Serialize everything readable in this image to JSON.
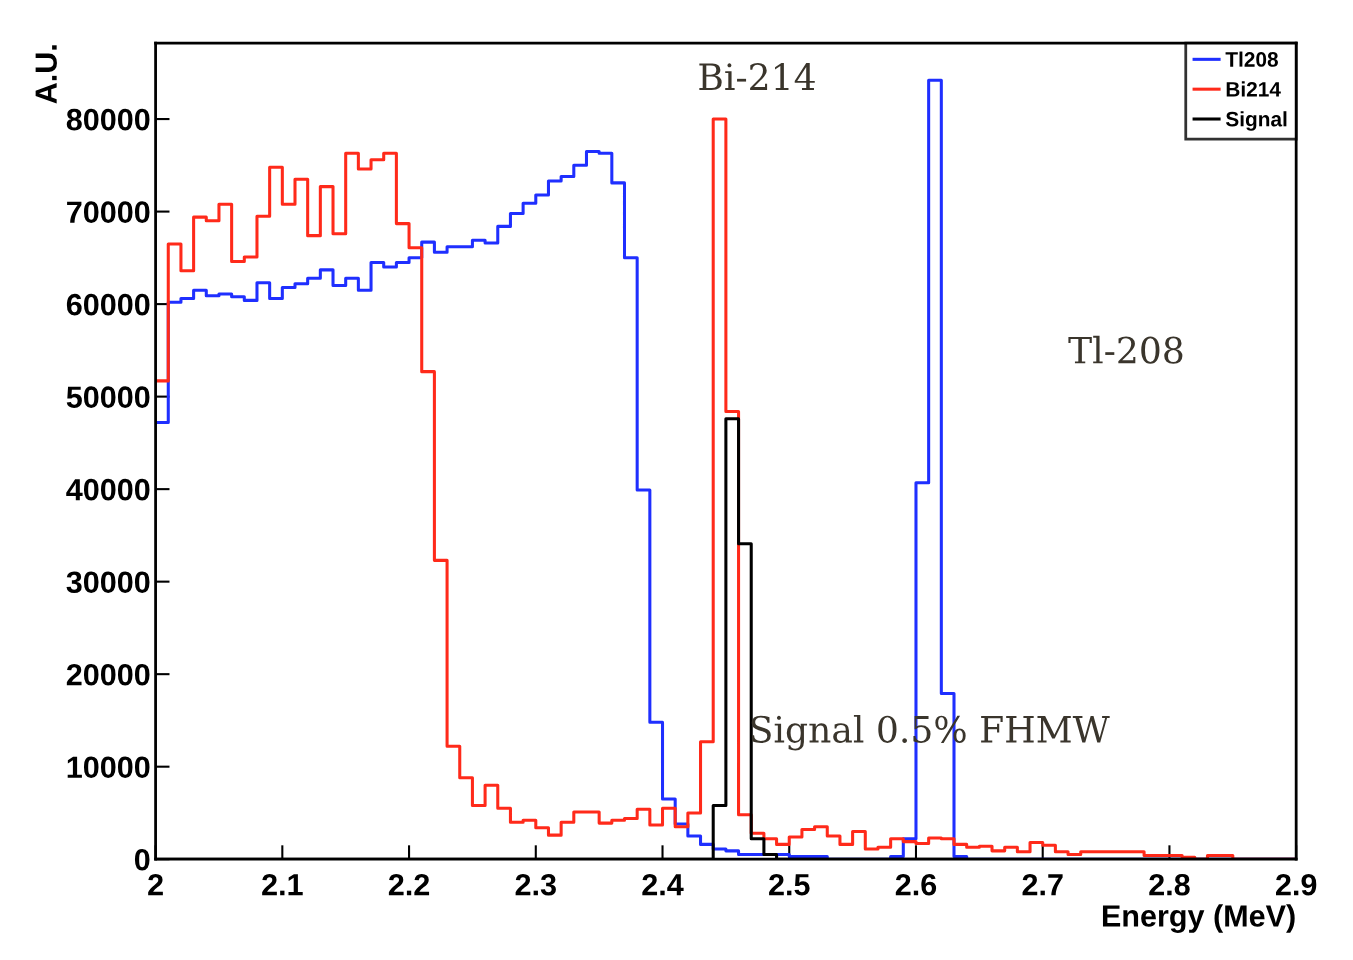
{
  "chart_data": {
    "type": "histogram",
    "xlabel": "Energy (MeV)",
    "ylabel": "A.U.",
    "bins": [
      2.0,
      2.01,
      2.02,
      2.03,
      2.04,
      2.05,
      2.06,
      2.07,
      2.08,
      2.09,
      2.1,
      2.11,
      2.12,
      2.13,
      2.14,
      2.15,
      2.16,
      2.17,
      2.18,
      2.19,
      2.2,
      2.21,
      2.22,
      2.23,
      2.24,
      2.25,
      2.26,
      2.27,
      2.28,
      2.29,
      2.3,
      2.31,
      2.32,
      2.33,
      2.34,
      2.35,
      2.36,
      2.37,
      2.38,
      2.39,
      2.4,
      2.41,
      2.42,
      2.43,
      2.44,
      2.45,
      2.46,
      2.47,
      2.48,
      2.49,
      2.5,
      2.51,
      2.52,
      2.53,
      2.54,
      2.55,
      2.56,
      2.57,
      2.58,
      2.59,
      2.6,
      2.61,
      2.62,
      2.63,
      2.64,
      2.65,
      2.66,
      2.67,
      2.68,
      2.69,
      2.7,
      2.71,
      2.72,
      2.73,
      2.74,
      2.75,
      2.76,
      2.77,
      2.78,
      2.79,
      2.8,
      2.81,
      2.82,
      2.83,
      2.84,
      2.85,
      2.86,
      2.87,
      2.88,
      2.89,
      2.9
    ],
    "series": [
      {
        "name": "Tl208",
        "color": "#1f2fff",
        "values": [
          47200,
          60200,
          60600,
          61500,
          60900,
          61100,
          60800,
          60400,
          62300,
          60600,
          61800,
          62200,
          62800,
          63700,
          62000,
          62800,
          61500,
          64500,
          64000,
          64500,
          65000,
          66700,
          65600,
          66200,
          66200,
          66900,
          66600,
          68400,
          69800,
          70900,
          71800,
          73300,
          73800,
          75000,
          76500,
          76300,
          73100,
          65000,
          39900,
          14800,
          6500,
          3800,
          2500,
          1600,
          1100,
          900,
          500,
          500,
          500,
          500,
          300,
          300,
          300,
          0,
          0,
          0,
          0,
          0,
          300,
          2200,
          40700,
          84200,
          17900,
          300,
          0,
          0,
          0,
          0,
          0,
          0,
          0,
          0,
          0,
          0,
          0,
          0,
          0,
          0,
          0,
          0,
          0,
          0,
          0,
          0,
          0,
          0,
          0,
          0,
          0,
          0
        ]
      },
      {
        "name": "Bi214",
        "color": "#ff2a1a",
        "values": [
          51700,
          66500,
          63600,
          69400,
          69000,
          70800,
          64600,
          65100,
          69500,
          74800,
          70800,
          73500,
          67400,
          72700,
          67600,
          76300,
          74600,
          75600,
          76300,
          68700,
          66100,
          52700,
          32300,
          12200,
          8800,
          5800,
          8000,
          5500,
          4000,
          4200,
          3400,
          2600,
          4000,
          5100,
          5100,
          3900,
          4200,
          4400,
          5400,
          3700,
          5500,
          3500,
          5000,
          12700,
          80000,
          48400,
          4800,
          2800,
          2200,
          1600,
          2400,
          3200,
          3500,
          2500,
          1600,
          3000,
          1100,
          1300,
          2200,
          1900,
          1700,
          2300,
          2200,
          1600,
          1300,
          1400,
          900,
          1300,
          800,
          1800,
          1500,
          800,
          500,
          800,
          800,
          800,
          800,
          800,
          400,
          400,
          400,
          200,
          0,
          400,
          400,
          0,
          0,
          0,
          0,
          0
        ]
      },
      {
        "name": "Signal",
        "color": "#000000",
        "values": [
          0,
          0,
          0,
          0,
          0,
          0,
          0,
          0,
          0,
          0,
          0,
          0,
          0,
          0,
          0,
          0,
          0,
          0,
          0,
          0,
          0,
          0,
          0,
          0,
          0,
          0,
          0,
          0,
          0,
          0,
          0,
          0,
          0,
          0,
          0,
          0,
          0,
          0,
          0,
          0,
          0,
          0,
          0,
          0,
          5800,
          47600,
          34100,
          2200,
          500,
          0,
          0,
          0,
          0,
          0,
          0,
          0,
          0,
          0,
          0,
          0,
          0,
          0,
          0,
          0,
          0,
          0,
          0,
          0,
          0,
          0,
          0,
          0,
          0,
          0,
          0,
          0,
          0,
          0,
          0,
          0,
          0,
          0,
          0,
          0,
          0,
          0,
          0,
          0,
          0,
          0
        ]
      }
    ],
    "xlim": [
      2.0,
      2.9
    ],
    "xticks": [
      2,
      2.1,
      2.2,
      2.3,
      2.4,
      2.5,
      2.6,
      2.7,
      2.8,
      2.9
    ],
    "ylim": [
      0,
      88200
    ],
    "yticks": [
      0,
      10000,
      20000,
      30000,
      40000,
      50000,
      60000,
      70000,
      80000
    ],
    "grid": false,
    "legend": "top right",
    "annotations": [
      "Bi-214",
      "Tl-208",
      "Signal 0.5% FHMW"
    ]
  }
}
